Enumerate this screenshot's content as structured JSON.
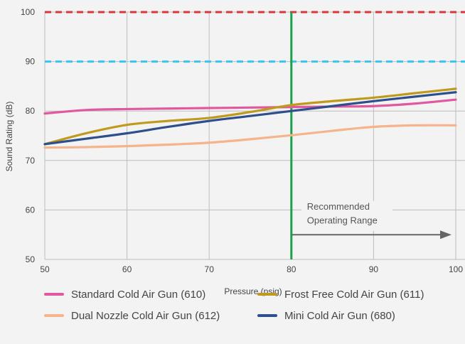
{
  "chart_data": {
    "type": "line",
    "xlabel": "Pressure (psig)",
    "ylabel": "Sound Rating (dB)",
    "xlim": [
      50,
      100
    ],
    "ylim": [
      50,
      100
    ],
    "x_ticks": [
      50,
      60,
      70,
      80,
      90,
      100
    ],
    "y_ticks": [
      50,
      60,
      70,
      80,
      90,
      100
    ],
    "grid": true,
    "reference_lines": [
      {
        "axis": "y",
        "value": 100,
        "style": "dashed",
        "color": "#d9363e"
      },
      {
        "axis": "y",
        "value": 90,
        "style": "dashed",
        "color": "#3bc3ef"
      },
      {
        "axis": "x",
        "value": 80,
        "style": "solid",
        "color": "#1aa24a"
      }
    ],
    "annotation": {
      "lines": [
        "Recommended",
        "Operating Range"
      ],
      "arrow_from": 80,
      "arrow_to": 100,
      "arrow_y": 55
    },
    "x": [
      50,
      55,
      60,
      65,
      70,
      75,
      80,
      85,
      90,
      95,
      100
    ],
    "series": [
      {
        "name": "Standard Cold Air Gun (610)",
        "color": "#e0589f",
        "values": [
          79.5,
          80.2,
          80.4,
          80.5,
          80.6,
          80.7,
          80.8,
          80.9,
          81.0,
          81.5,
          82.3
        ]
      },
      {
        "name": "Frost Free Cold Air Gun (611)",
        "color": "#bf9a1c",
        "values": [
          73.3,
          75.5,
          77.2,
          78.0,
          78.6,
          79.8,
          81.2,
          82.0,
          82.7,
          83.6,
          84.5
        ]
      },
      {
        "name": "Dual Nozzle Cold Air Gun (612)",
        "color": "#f5b48c",
        "values": [
          72.6,
          72.7,
          72.9,
          73.2,
          73.6,
          74.3,
          75.1,
          76.0,
          76.8,
          77.1,
          77.1
        ]
      },
      {
        "name": "Mini Cold Air Gun (680)",
        "color": "#2e4f8c",
        "values": [
          73.3,
          74.4,
          75.5,
          76.8,
          78.0,
          79.0,
          80.0,
          81.0,
          82.0,
          82.9,
          83.8
        ]
      }
    ]
  }
}
